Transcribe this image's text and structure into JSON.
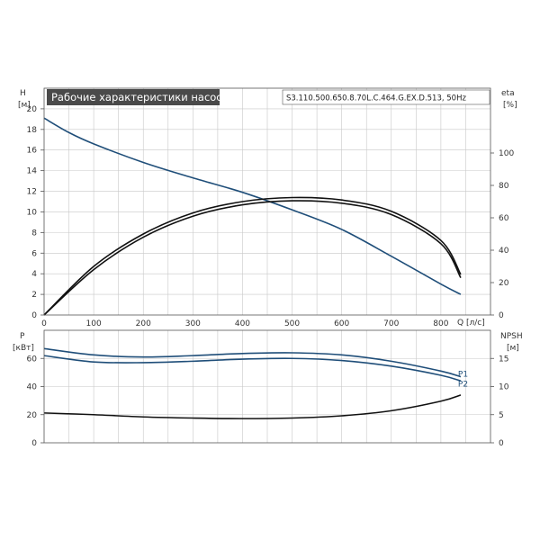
{
  "colors": {
    "blue": "#1f4e79",
    "black": "#111111",
    "grid": "#c8c8c8"
  },
  "chart_data": [
    {
      "type": "line",
      "title": "Рабочие характеристики насоса",
      "subtitle": "S3.110.500.650.8.70L.C.464.G.EX.D.513, 50Hz",
      "xlabel": "Q [л/с]",
      "x_unit": "[л/с]",
      "ylabel_left": "H",
      "ylabel_left_unit": "[м]",
      "ylabel_right": "eta",
      "ylabel_right_unit": "[%]",
      "xlim": [
        0,
        900
      ],
      "ylim_left": [
        0,
        22
      ],
      "ylim_right": [
        0,
        140
      ],
      "x_ticks": [
        0,
        100,
        200,
        300,
        400,
        500,
        600,
        700,
        800
      ],
      "y_ticks_left": [
        0,
        2,
        4,
        6,
        8,
        10,
        12,
        14,
        16,
        18,
        20
      ],
      "y_ticks_right": [
        0,
        20,
        40,
        60,
        80,
        100
      ],
      "grid": true,
      "series": [
        {
          "axis": "left",
          "color": "#1f4e79",
          "x": [
            0,
            50,
            100,
            200,
            300,
            400,
            500,
            600,
            700,
            800,
            840
          ],
          "y": [
            19.1,
            17.7,
            16.6,
            14.8,
            13.3,
            11.9,
            10.2,
            8.3,
            5.7,
            3.0,
            2.0
          ]
        },
        {
          "axis": "right",
          "color": "#111111",
          "x": [
            0,
            100,
            200,
            300,
            400,
            500,
            600,
            700,
            800,
            840
          ],
          "y": [
            0,
            30,
            50,
            63,
            70,
            72.5,
            71,
            64,
            46,
            25
          ]
        },
        {
          "axis": "right",
          "color": "#111111",
          "x": [
            0,
            100,
            200,
            300,
            400,
            500,
            600,
            700,
            800,
            840
          ],
          "y": [
            0,
            28,
            48,
            61,
            68,
            70.5,
            69,
            62,
            44,
            23
          ]
        }
      ]
    },
    {
      "type": "line",
      "ylabel_left": "P",
      "ylabel_left_unit": "[кВт]",
      "ylabel_right": "NPSH",
      "ylabel_right_unit": "[м]",
      "xlim": [
        0,
        900
      ],
      "ylim_left": [
        0,
        80
      ],
      "ylim_right": [
        0,
        20
      ],
      "y_ticks_left": [
        0,
        20,
        40,
        60
      ],
      "y_ticks_right": [
        0,
        5,
        10,
        15
      ],
      "grid": true,
      "series": [
        {
          "name": "P1",
          "axis": "left",
          "color": "#1f4e79",
          "x": [
            0,
            100,
            200,
            300,
            400,
            500,
            600,
            700,
            800,
            840
          ],
          "y": [
            67,
            62.5,
            61,
            62,
            63.5,
            64,
            62.5,
            58,
            51,
            47
          ]
        },
        {
          "name": "P2",
          "axis": "left",
          "color": "#1f4e79",
          "x": [
            0,
            100,
            200,
            300,
            400,
            500,
            600,
            700,
            800,
            840
          ],
          "y": [
            62,
            57.5,
            57,
            58,
            59.5,
            60,
            58.5,
            54.5,
            48,
            44
          ]
        },
        {
          "axis": "right",
          "color": "#111111",
          "x": [
            0,
            100,
            200,
            300,
            400,
            500,
            600,
            700,
            800,
            840
          ],
          "y": [
            5.3,
            5.0,
            4.6,
            4.4,
            4.3,
            4.4,
            4.8,
            5.7,
            7.4,
            8.5
          ]
        }
      ]
    }
  ]
}
